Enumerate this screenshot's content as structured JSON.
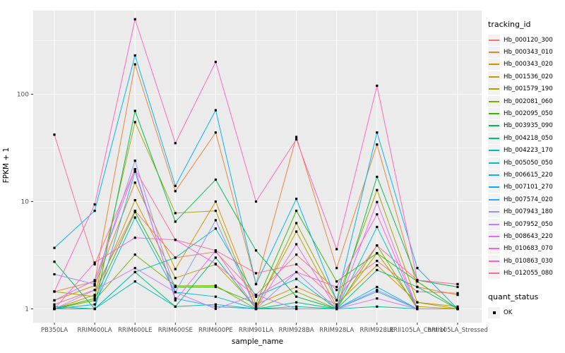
{
  "figure": {
    "bg": "#FFFFFF",
    "panel_bg": "#EBEBEB",
    "grid_major_color": "#FFFFFF",
    "grid_minor_color": "#F7F7F7",
    "axis_text_color": "#4D4D4D",
    "marker_color": "#000000"
  },
  "chart_data": {
    "type": "line",
    "title": "",
    "xlabel": "sample_name",
    "ylabel": "FPKM + 1",
    "yscale": "log10",
    "ylim": [
      0.75,
      600
    ],
    "yticks": [
      1,
      10,
      100
    ],
    "yminor": [
      3.1623,
      31.623,
      316.23
    ],
    "grid": true,
    "marker": "black-square",
    "categories": [
      "PB350LA",
      "RRIM600LA",
      "RRIM600LE",
      "RRIM600SE",
      "RRIM600PE",
      "RRIM901LA",
      "RRIM928BA",
      "RRIM928LA",
      "RRIM928LE",
      "RRII105LA_Control",
      "RRII105LA_Stressed"
    ],
    "series": [
      {
        "name": "Hb_000120_300",
        "color": "#F8766D",
        "values": [
          1.1,
          1.5,
          8.2,
          3.0,
          3.4,
          1.35,
          3.2,
          1.5,
          2.8,
          1.45,
          1.4
        ]
      },
      {
        "name": "Hb_000343_010",
        "color": "#EA8331",
        "values": [
          1.45,
          1.8,
          190,
          12.5,
          44,
          1.7,
          40,
          2.4,
          34,
          1.6,
          1.35
        ]
      },
      {
        "name": "Hb_000343_020",
        "color": "#D89000",
        "values": [
          1.2,
          1.65,
          15,
          2.35,
          10,
          1.1,
          1.6,
          1.1,
          2.55,
          1.15,
          1.05
        ]
      },
      {
        "name": "Hb_001536_020",
        "color": "#C09B00",
        "values": [
          1.0,
          1.35,
          10.3,
          1.94,
          2.6,
          1.05,
          5.25,
          1.05,
          3.3,
          1.05,
          1.0
        ]
      },
      {
        "name": "Hb_001579_190",
        "color": "#A3A500",
        "values": [
          1.45,
          1.3,
          55,
          7.8,
          8.2,
          1.0,
          6.3,
          1.2,
          12.8,
          1.15,
          1.0
        ]
      },
      {
        "name": "Hb_002081_060",
        "color": "#7CAE00",
        "values": [
          1.0,
          1.2,
          3.2,
          1.64,
          1.65,
          1.0,
          1.45,
          1.0,
          3.9,
          1.0,
          1.0
        ]
      },
      {
        "name": "Hb_002095_050",
        "color": "#39B600",
        "values": [
          1.0,
          1.25,
          8.0,
          1.6,
          1.6,
          1.12,
          8.2,
          1.8,
          3.3,
          1.8,
          1.0
        ]
      },
      {
        "name": "Hb_003935_090",
        "color": "#00BB4E",
        "values": [
          2.75,
          1.0,
          70,
          6.5,
          16,
          3.5,
          1.3,
          1.0,
          17,
          1.85,
          1.6
        ]
      },
      {
        "name": "Hb_004218_050",
        "color": "#00BF7D",
        "values": [
          1.0,
          1.0,
          2.2,
          1.05,
          3.0,
          1.0,
          1.15,
          1.0,
          2.3,
          1.6,
          1.0
        ]
      },
      {
        "name": "Hb_004223_170",
        "color": "#00C1A3",
        "values": [
          1.05,
          1.0,
          1.8,
          1.05,
          1.1,
          1.0,
          1.05,
          1.0,
          1.05,
          1.0,
          1.0
        ]
      },
      {
        "name": "Hb_005050_050",
        "color": "#00BFC4",
        "values": [
          1.0,
          1.0,
          2.2,
          3.0,
          5.6,
          1.3,
          1.9,
          1.0,
          5.8,
          1.0,
          1.0
        ]
      },
      {
        "name": "Hb_006615_220",
        "color": "#00BBDA",
        "values": [
          1.0,
          1.1,
          7.1,
          1.43,
          1.3,
          1.0,
          1.0,
          1.0,
          1.6,
          1.0,
          1.0
        ]
      },
      {
        "name": "Hb_007101_270",
        "color": "#00B0F6",
        "values": [
          3.7,
          8.2,
          230,
          14,
          71,
          1.7,
          10.6,
          1.2,
          44,
          2.4,
          1.0
        ]
      },
      {
        "name": "Hb_007574_020",
        "color": "#35A2FF",
        "values": [
          1.0,
          1.0,
          19,
          1.25,
          1.05,
          1.0,
          1.0,
          1.0,
          1.45,
          1.0,
          1.0
        ]
      },
      {
        "name": "Hb_007943_180",
        "color": "#9590FF",
        "values": [
          2.1,
          1.7,
          24,
          1.43,
          6.7,
          1.0,
          2.2,
          1.0,
          1.5,
          1.0,
          1.0
        ]
      },
      {
        "name": "Hb_007952_050",
        "color": "#C77CFF",
        "values": [
          1.0,
          1.5,
          2.4,
          1.43,
          1.0,
          1.35,
          1.0,
          1.0,
          1.25,
          1.0,
          1.0
        ]
      },
      {
        "name": "Hb_008643_220",
        "color": "#E76BF3",
        "values": [
          1.2,
          1.85,
          20,
          1.2,
          3.5,
          1.0,
          4.0,
          1.0,
          9.9,
          1.0,
          1.0
        ]
      },
      {
        "name": "Hb_010683_070",
        "color": "#FA62DB",
        "values": [
          1.0,
          2.7,
          4.6,
          4.4,
          2.63,
          1.3,
          2.2,
          1.6,
          7.6,
          1.0,
          1.0
        ]
      },
      {
        "name": "Hb_010863_030",
        "color": "#FF62BC",
        "values": [
          1.45,
          9.4,
          500,
          35,
          200,
          10,
          38,
          3.6,
          120,
          1.85,
          1.7
        ]
      },
      {
        "name": "Hb_012055_080",
        "color": "#FF6A98",
        "values": [
          42,
          2.6,
          20,
          4.4,
          3.5,
          2.15,
          2.6,
          1.2,
          3.9,
          1.85,
          1.7
        ]
      }
    ],
    "legend": {
      "title": "tracking_id",
      "position": "right"
    },
    "legend2": {
      "title": "quant_status",
      "items": [
        {
          "label": "OK",
          "marker": "black-square"
        }
      ]
    }
  }
}
